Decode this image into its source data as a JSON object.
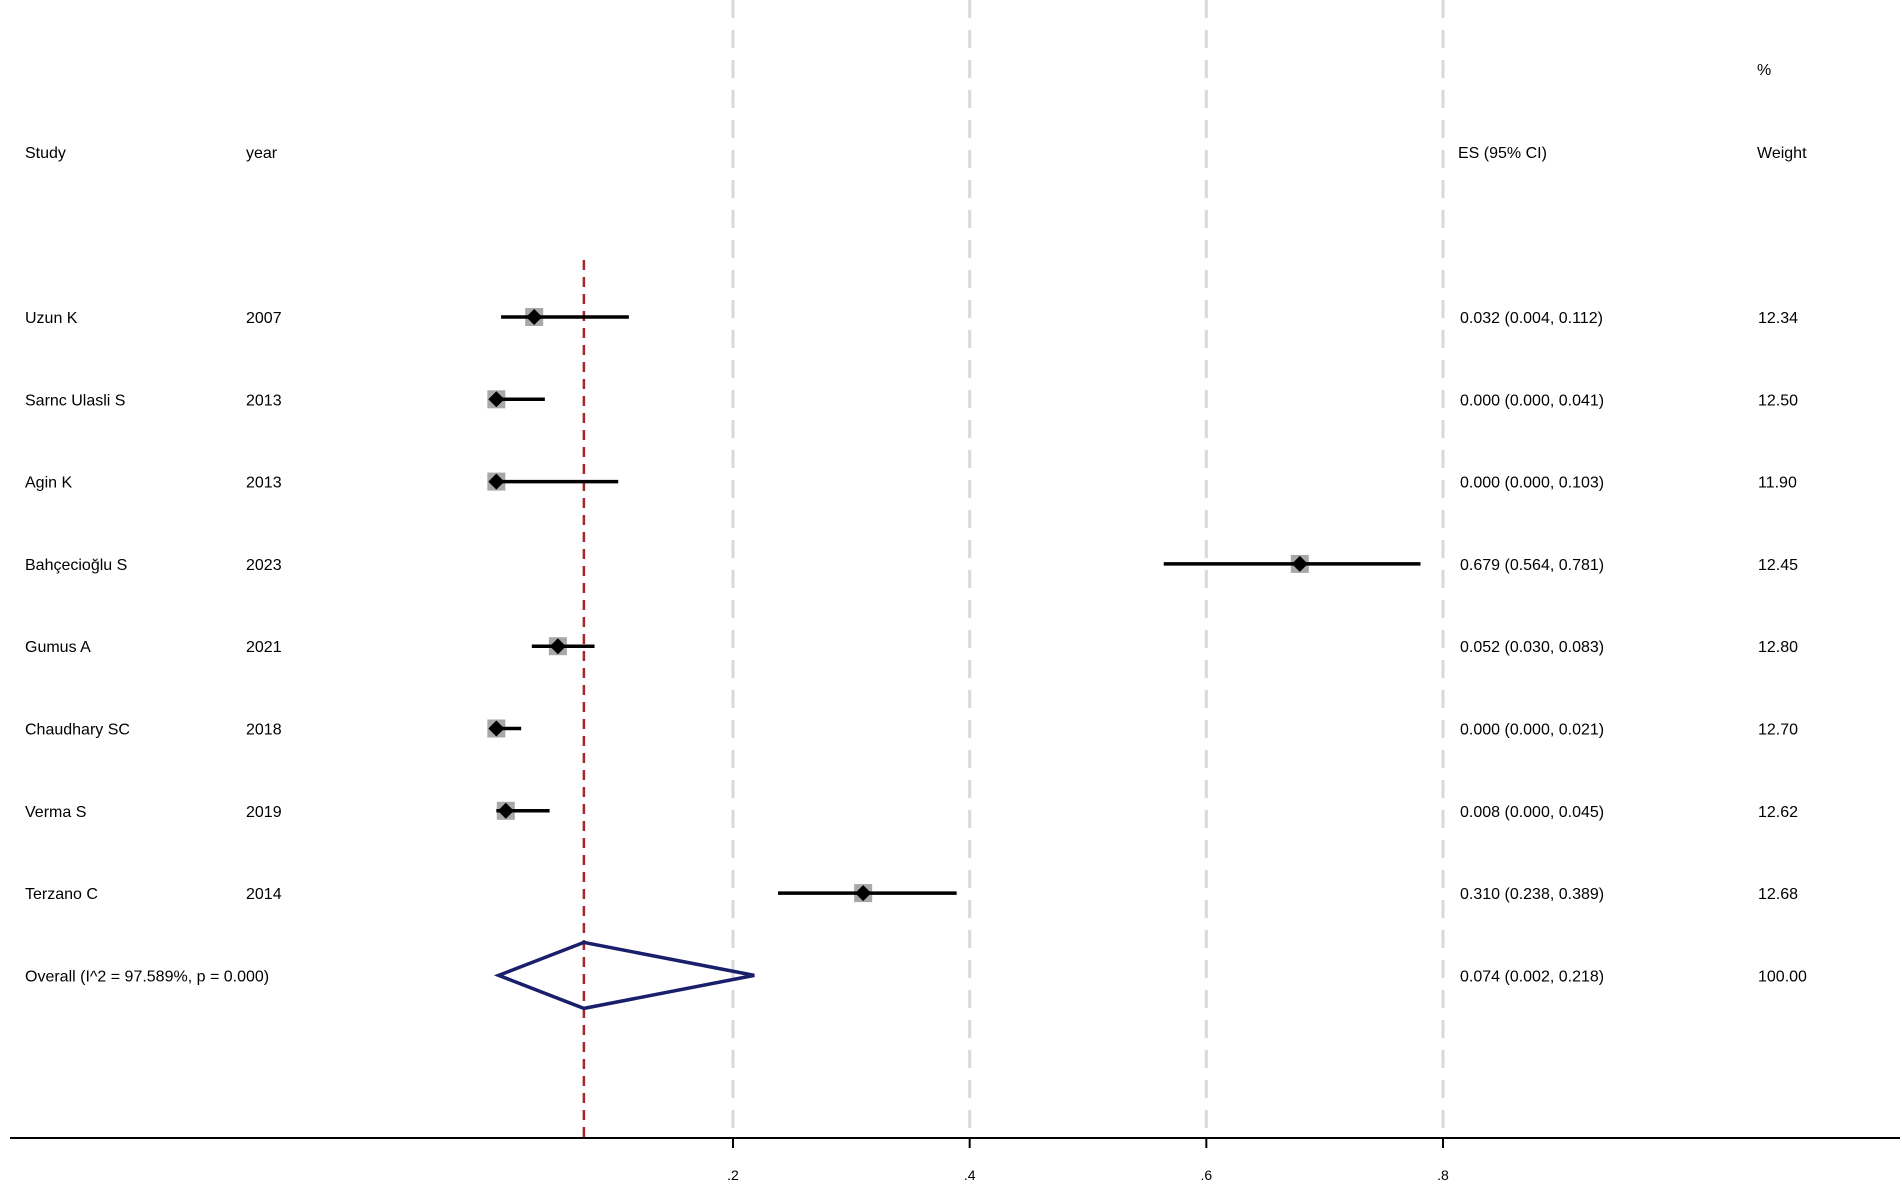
{
  "chart_data": {
    "type": "forest",
    "headers": {
      "study": "Study",
      "year": "year",
      "es": "ES (95% CI)",
      "weight_pct": "%",
      "weight": "Weight"
    },
    "studies": [
      {
        "study": "Uzun K",
        "year": "2007",
        "es": 0.032,
        "lo": 0.004,
        "hi": 0.112,
        "es_text": "0.032 (0.004, 0.112)",
        "weight": "12.34"
      },
      {
        "study": "Sarnc Ulasli S",
        "year": "2013",
        "es": 0.0,
        "lo": 0.0,
        "hi": 0.041,
        "es_text": "0.000 (0.000, 0.041)",
        "weight": "12.50"
      },
      {
        "study": "Agin K",
        "year": "2013",
        "es": 0.0,
        "lo": 0.0,
        "hi": 0.103,
        "es_text": "0.000 (0.000, 0.103)",
        "weight": "11.90"
      },
      {
        "study": "Bahçecioğlu S",
        "year": "2023",
        "es": 0.679,
        "lo": 0.564,
        "hi": 0.781,
        "es_text": "0.679 (0.564, 0.781)",
        "weight": "12.45"
      },
      {
        "study": "Gumus A",
        "year": "2021",
        "es": 0.052,
        "lo": 0.03,
        "hi": 0.083,
        "es_text": "0.052 (0.030, 0.083)",
        "weight": "12.80"
      },
      {
        "study": "Chaudhary SC",
        "year": "2018",
        "es": 0.0,
        "lo": 0.0,
        "hi": 0.021,
        "es_text": "0.000 (0.000, 0.021)",
        "weight": "12.70"
      },
      {
        "study": "Verma S",
        "year": "2019",
        "es": 0.008,
        "lo": 0.0,
        "hi": 0.045,
        "es_text": "0.008 (0.000, 0.045)",
        "weight": "12.62"
      },
      {
        "study": "Terzano C",
        "year": "2014",
        "es": 0.31,
        "lo": 0.238,
        "hi": 0.389,
        "es_text": "0.310 (0.238, 0.389)",
        "weight": "12.68"
      }
    ],
    "overall": {
      "label": "Overall  (I^2 = 97.589%, p = 0.000)",
      "es": 0.074,
      "lo": 0.002,
      "hi": 0.218,
      "es_text": "0.074 (0.002, 0.218)",
      "weight": "100.00"
    },
    "x_ticks": [
      0.2,
      0.4,
      0.6,
      0.8
    ],
    "x_tick_labels": [
      ".2",
      ".4",
      ".6",
      ".8"
    ],
    "xlim": [
      0,
      0.8
    ],
    "gridlines": "dashed vertical at ticks",
    "colors": {
      "marker": "#000000",
      "weight_box": "#a8a8a8",
      "ci_line": "#000000",
      "overall_diamond": "#1a1f6b",
      "reference_line": "#a4262c",
      "gridline": "#d9d9d9"
    }
  }
}
